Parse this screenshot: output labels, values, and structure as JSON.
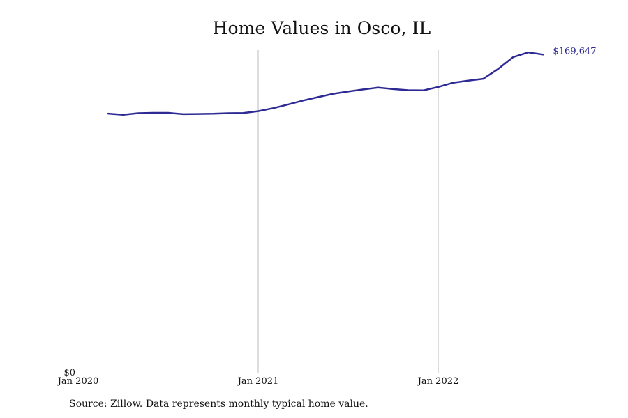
{
  "source_note": "Source: Zillow. Data represents monthly typical home value.",
  "chart_data": {
    "type": "line",
    "title": "Home Values in Osco, IL",
    "xlabel": "",
    "ylabel": "",
    "x_ticks": [
      "Jan 2020",
      "Jan 2021",
      "Jan 2022"
    ],
    "y_ticks": [
      "$0"
    ],
    "ylim": [
      0,
      172000
    ],
    "grid": "vertical lines at year ticks",
    "end_label": "$169,647",
    "colors": {
      "line": "#2e2a94",
      "grid": "#bbbbbb",
      "text": "#111111"
    },
    "series": [
      {
        "x": [
          "2020-03",
          "2020-04",
          "2020-05",
          "2020-06",
          "2020-07",
          "2020-08",
          "2020-09",
          "2020-10",
          "2020-11",
          "2020-12",
          "2021-01",
          "2021-02",
          "2021-03",
          "2021-04",
          "2021-05",
          "2021-06",
          "2021-07",
          "2021-08",
          "2021-09",
          "2021-10",
          "2021-11",
          "2021-12",
          "2022-01",
          "2022-02",
          "2022-03",
          "2022-04",
          "2022-05",
          "2022-06",
          "2022-07",
          "2022-08"
        ],
        "values": [
          138100,
          137500,
          138300,
          138500,
          138500,
          137800,
          137900,
          138000,
          138300,
          138400,
          139400,
          141000,
          143000,
          145100,
          146900,
          148700,
          149900,
          151000,
          152000,
          151200,
          150600,
          150500,
          152300,
          154600,
          155700,
          156700,
          162000,
          168300,
          170800,
          169647
        ]
      }
    ]
  }
}
